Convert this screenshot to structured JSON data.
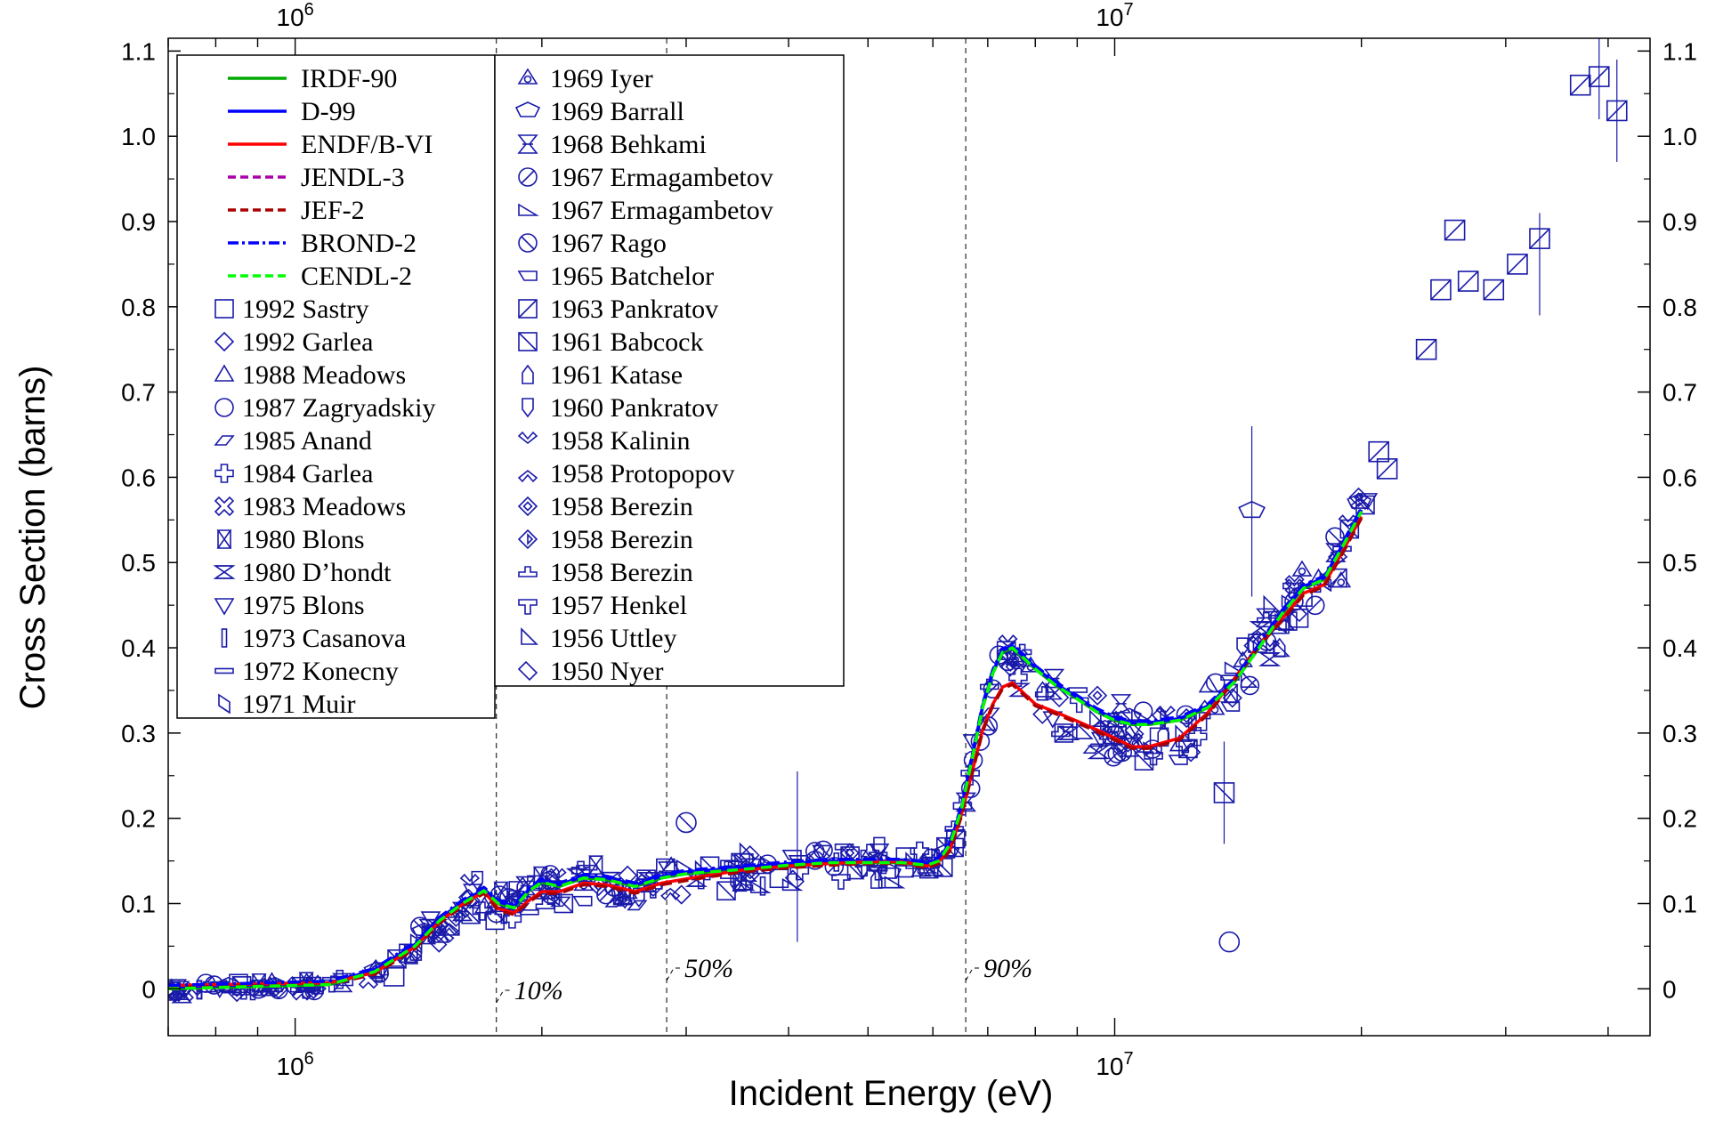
{
  "chart_data": {
    "type": "scatter",
    "title": "",
    "xlabel": "Incident Energy  (eV)",
    "ylabel": "Cross Section  (barns)",
    "x_scale": "log",
    "xlim": [
      700000,
      45000000
    ],
    "ylim": [
      -0.055,
      1.115
    ],
    "grid": false,
    "legend_position": "top-left",
    "x_major_ticks": [
      {
        "value": 1000000,
        "base": "10",
        "exp": "6"
      },
      {
        "value": 10000000,
        "base": "10",
        "exp": "7"
      }
    ],
    "y_ticks": [
      "0",
      "0.1",
      "0.2",
      "0.3",
      "0.4",
      "0.5",
      "0.6",
      "0.7",
      "0.8",
      "0.9",
      "1.0",
      "1.1"
    ],
    "threshold_markers": [
      {
        "label": "10%",
        "x": 1760000
      },
      {
        "label": "50%",
        "x": 2840000
      },
      {
        "label": "90%",
        "x": 6580000
      }
    ],
    "evaluations": [
      {
        "name": "IRDF-90",
        "color": "#00aa00",
        "dash": "solid"
      },
      {
        "name": "D-99",
        "color": "#0000ff",
        "dash": "solid"
      },
      {
        "name": "ENDF/B-VI",
        "color": "#ff0000",
        "dash": "solid"
      },
      {
        "name": "JENDL-3",
        "color": "#aa00aa",
        "dash": "dashed"
      },
      {
        "name": "JEF-2",
        "color": "#aa0000",
        "dash": "dashed"
      },
      {
        "name": "BROND-2",
        "color": "#0000ff",
        "dash": "dashdot"
      },
      {
        "name": "CENDL-2",
        "color": "#00ff00",
        "dash": "dashed"
      }
    ],
    "curve_high": {
      "x": [
        700000,
        1100000,
        1250000,
        1400000,
        1500000,
        1600000,
        1700000,
        1770000,
        1850000,
        1930000,
        2000000,
        2100000,
        2250000,
        2400000,
        2600000,
        2800000,
        3000000,
        3500000,
        4000000,
        4500000,
        5000000,
        5500000,
        5900000,
        6100000,
        6300000,
        6500000,
        6700000,
        6900000,
        7100000,
        7300000,
        7500000,
        7700000,
        8000000,
        8500000,
        9000000,
        9500000,
        10000000,
        10500000,
        11000000,
        12000000,
        13000000,
        14000000,
        15000000,
        16000000,
        17000000,
        18000000,
        19000000,
        20000000
      ],
      "y": [
        0,
        0.005,
        0.02,
        0.05,
        0.08,
        0.1,
        0.115,
        0.1,
        0.095,
        0.115,
        0.125,
        0.12,
        0.13,
        0.128,
        0.12,
        0.13,
        0.135,
        0.14,
        0.145,
        0.148,
        0.148,
        0.148,
        0.145,
        0.15,
        0.17,
        0.21,
        0.27,
        0.33,
        0.37,
        0.395,
        0.4,
        0.39,
        0.375,
        0.355,
        0.34,
        0.325,
        0.315,
        0.31,
        0.31,
        0.315,
        0.33,
        0.36,
        0.4,
        0.44,
        0.47,
        0.48,
        0.52,
        0.56
      ]
    },
    "curve_low": {
      "x": [
        700000,
        1100000,
        1250000,
        1400000,
        1500000,
        1600000,
        1700000,
        1770000,
        1850000,
        1930000,
        2000000,
        2100000,
        2250000,
        2400000,
        2600000,
        2800000,
        3000000,
        3500000,
        4000000,
        4500000,
        5000000,
        5500000,
        5900000,
        6100000,
        6300000,
        6500000,
        6700000,
        6900000,
        7100000,
        7300000,
        7500000,
        7700000,
        8000000,
        8500000,
        9000000,
        9500000,
        10000000,
        10500000,
        11000000,
        12000000,
        13000000,
        14000000,
        15000000,
        16000000,
        17000000,
        18000000,
        19000000,
        20000000
      ],
      "y": [
        0,
        0.003,
        0.015,
        0.045,
        0.075,
        0.095,
        0.11,
        0.09,
        0.085,
        0.1,
        0.11,
        0.11,
        0.12,
        0.118,
        0.11,
        0.12,
        0.125,
        0.135,
        0.14,
        0.143,
        0.145,
        0.145,
        0.14,
        0.145,
        0.16,
        0.2,
        0.25,
        0.3,
        0.33,
        0.35,
        0.355,
        0.345,
        0.33,
        0.32,
        0.31,
        0.3,
        0.29,
        0.28,
        0.28,
        0.29,
        0.32,
        0.36,
        0.4,
        0.43,
        0.46,
        0.47,
        0.51,
        0.55
      ]
    },
    "experiments": [
      {
        "name": "1992 Sastry",
        "marker": "square"
      },
      {
        "name": "1992 Garlea",
        "marker": "diamond"
      },
      {
        "name": "1988 Meadows",
        "marker": "triangle-up"
      },
      {
        "name": "1987 Zagryadskiy",
        "marker": "circle"
      },
      {
        "name": "1985 Anand",
        "marker": "parallelogram"
      },
      {
        "name": "1984 Garlea",
        "marker": "plus"
      },
      {
        "name": "1983 Meadows",
        "marker": "x-cross"
      },
      {
        "name": "1980 Blons",
        "marker": "bowtie-h"
      },
      {
        "name": "1980 D’hondt",
        "marker": "bowtie-v"
      },
      {
        "name": "1975 Blons",
        "marker": "triangle-down"
      },
      {
        "name": "1973 Casanova",
        "marker": "thin-rect-v"
      },
      {
        "name": "1972 Konecny",
        "marker": "thin-rect-h"
      },
      {
        "name": "1971 Muir",
        "marker": "slash-box"
      },
      {
        "name": "1969 Iyer",
        "marker": "tri-circle"
      },
      {
        "name": "1969 Barrall",
        "marker": "pentagon-down"
      },
      {
        "name": "1968 Behkami",
        "marker": "hourglass"
      },
      {
        "name": "1967 Ermagambetov",
        "marker": "circle-slash"
      },
      {
        "name": "1967 Ermagambetov",
        "marker": "right-triangle"
      },
      {
        "name": "1967 Rago",
        "marker": "circle-backslash"
      },
      {
        "name": "1965 Batchelor",
        "marker": "trapezoid"
      },
      {
        "name": "1963 Pankratov",
        "marker": "square-slash"
      },
      {
        "name": "1961 Babcock",
        "marker": "square-backslash"
      },
      {
        "name": "1961 Katase",
        "marker": "house"
      },
      {
        "name": "1960 Pankratov",
        "marker": "shield"
      },
      {
        "name": "1958 Kalinin",
        "marker": "chevron-down"
      },
      {
        "name": "1958 Protopopov",
        "marker": "chevron-up"
      },
      {
        "name": "1958 Berezin",
        "marker": "diamond-inner"
      },
      {
        "name": "1958 Berezin",
        "marker": "diamond-dot"
      },
      {
        "name": "1958 Berezin",
        "marker": "step"
      },
      {
        "name": "1957 Henkel",
        "marker": "t-shape"
      },
      {
        "name": "1956 Uttley",
        "marker": "right-triangle-2"
      },
      {
        "name": "1950 Nyer",
        "marker": "slash-diamond"
      }
    ],
    "highlighted_points": [
      {
        "series": "1963 Pankratov",
        "x": 24000000,
        "y": 0.75
      },
      {
        "series": "1963 Pankratov",
        "x": 26000000,
        "y": 0.89
      },
      {
        "series": "1963 Pankratov",
        "x": 25000000,
        "y": 0.82
      },
      {
        "series": "1963 Pankratov",
        "x": 27000000,
        "y": 0.83
      },
      {
        "series": "1963 Pankratov",
        "x": 29000000,
        "y": 0.82
      },
      {
        "series": "1963 Pankratov",
        "x": 31000000,
        "y": 0.85
      },
      {
        "series": "1963 Pankratov",
        "x": 33000000,
        "y": 0.88
      },
      {
        "series": "1963 Pankratov",
        "x": 37000000,
        "y": 1.06
      },
      {
        "series": "1963 Pankratov",
        "x": 39000000,
        "y": 1.07
      },
      {
        "series": "1963 Pankratov",
        "x": 41000000,
        "y": 1.03
      },
      {
        "series": "1963 Pankratov",
        "x": 21000000,
        "y": 0.63
      },
      {
        "series": "1963 Pankratov",
        "x": 21500000,
        "y": 0.61
      },
      {
        "series": "1987 Zagryadskiy",
        "x": 13800000,
        "y": 0.055
      },
      {
        "series": "1969 Barrall",
        "x": 14700000,
        "y": 0.56
      },
      {
        "series": "1961 Babcock",
        "x": 13600000,
        "y": 0.23
      },
      {
        "series": "1967 Rago",
        "x": 3000000,
        "y": 0.195
      },
      {
        "series": "1992 Sastry",
        "x": 5300000,
        "y": 0.13
      },
      {
        "series": "1992 Sastry",
        "x": 1320000,
        "y": 0.015
      }
    ]
  }
}
